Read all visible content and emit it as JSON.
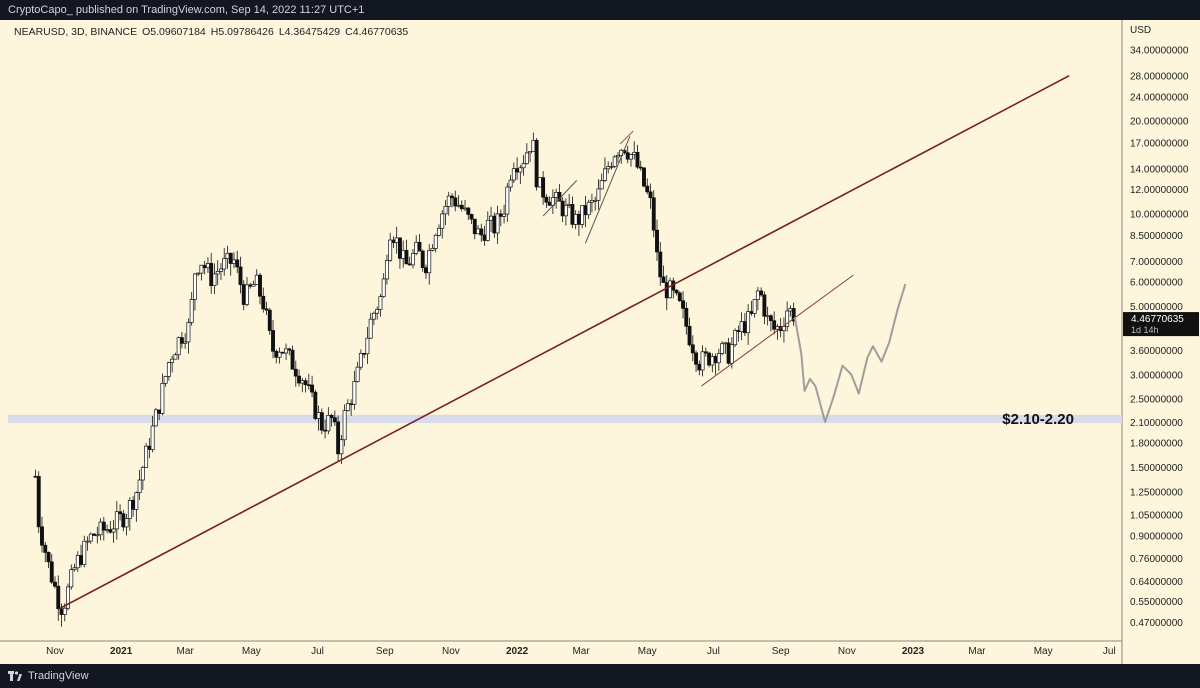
{
  "header": {
    "published_line": "CryptoCapo_ published on TradingView.com, Sep 14, 2022 11:27 UTC+1"
  },
  "footer": {
    "brand": "TradingView"
  },
  "chart_data": {
    "type": "candlestick",
    "symbol_line": "NEARUSD, 3D, BINANCE",
    "ohlc": {
      "open": "O5.09607184",
      "high": "H5.09786426",
      "low": "L4.36475429",
      "close": "C4.46770635"
    },
    "currency": "USD",
    "scale": "log",
    "ylim": [
      0.44,
      40
    ],
    "y_ticks": [
      "34.00000000",
      "28.00000000",
      "24.00000000",
      "20.00000000",
      "17.00000000",
      "14.00000000",
      "12.00000000",
      "10.00000000",
      "8.50000000",
      "7.00000000",
      "6.00000000",
      "5.00000000",
      "3.60000000",
      "3.00000000",
      "2.50000000",
      "2.10000000",
      "1.80000000",
      "1.50000000",
      "1.25000000",
      "1.05000000",
      "0.90000000",
      "0.76000000",
      "0.64000000",
      "0.55000000",
      "0.47000000"
    ],
    "x_ticks": [
      "Nov",
      "2021",
      "Mar",
      "May",
      "Jul",
      "Sep",
      "Nov",
      "2022",
      "Mar",
      "May",
      "Jul",
      "Sep",
      "Nov",
      "2023",
      "Mar",
      "May",
      "Jul"
    ],
    "last_price_label": "4.46770635",
    "countdown_label": "1d 14h",
    "support_zone": {
      "low": 2.1,
      "high": 2.2,
      "label": "$2.10-2.20",
      "color": "#d6dcea"
    },
    "price_path": [
      [
        "2020-10-14",
        1.4
      ],
      [
        "2020-10-17",
        1.0
      ],
      [
        "2020-10-26",
        0.72
      ],
      [
        "2020-11-04",
        0.56
      ],
      [
        "2020-11-08",
        0.52
      ],
      [
        "2020-11-20",
        0.72
      ],
      [
        "2020-12-05",
        0.9
      ],
      [
        "2020-12-20",
        0.95
      ],
      [
        "2021-01-05",
        1.05
      ],
      [
        "2021-01-15",
        1.25
      ],
      [
        "2021-01-25",
        1.7
      ],
      [
        "2021-02-05",
        2.4
      ],
      [
        "2021-02-15",
        3.4
      ],
      [
        "2021-02-25",
        4.0
      ],
      [
        "2021-03-05",
        4.3
      ],
      [
        "2021-03-10",
        6.5
      ],
      [
        "2021-03-15",
        7.1
      ],
      [
        "2021-03-25",
        6.2
      ],
      [
        "2021-04-05",
        6.8
      ],
      [
        "2021-04-15",
        7.0
      ],
      [
        "2021-04-25",
        5.3
      ],
      [
        "2021-05-05",
        6.0
      ],
      [
        "2021-05-13",
        5.0
      ],
      [
        "2021-05-20",
        3.6
      ],
      [
        "2021-05-28",
        3.7
      ],
      [
        "2021-06-07",
        3.3
      ],
      [
        "2021-06-18",
        2.9
      ],
      [
        "2021-06-25",
        2.5
      ],
      [
        "2021-07-05",
        2.05
      ],
      [
        "2021-07-15",
        2.15
      ],
      [
        "2021-07-20",
        1.7
      ],
      [
        "2021-07-25",
        2.15
      ],
      [
        "2021-08-05",
        2.8
      ],
      [
        "2021-08-20",
        4.6
      ],
      [
        "2021-08-30",
        5.5
      ],
      [
        "2021-09-05",
        9.0
      ],
      [
        "2021-09-10",
        8.5
      ],
      [
        "2021-09-20",
        6.7
      ],
      [
        "2021-10-01",
        7.6
      ],
      [
        "2021-10-08",
        6.7
      ],
      [
        "2021-10-18",
        9.0
      ],
      [
        "2021-10-25",
        10.3
      ],
      [
        "2021-11-01",
        11.4
      ],
      [
        "2021-11-10",
        10.5
      ],
      [
        "2021-11-20",
        9.2
      ],
      [
        "2021-11-28",
        8.4
      ],
      [
        "2021-12-05",
        9.2
      ],
      [
        "2021-12-12",
        9.0
      ],
      [
        "2021-12-20",
        10.5
      ],
      [
        "2021-12-28",
        15.0
      ],
      [
        "2022-01-05",
        14.6
      ],
      [
        "2022-01-15",
        17.5
      ],
      [
        "2022-01-20",
        12.3
      ],
      [
        "2022-01-25",
        11.8
      ],
      [
        "2022-02-05",
        11.0
      ],
      [
        "2022-02-15",
        10.2
      ],
      [
        "2022-02-25",
        9.4
      ],
      [
        "2022-03-05",
        10.2
      ],
      [
        "2022-03-15",
        11.0
      ],
      [
        "2022-03-25",
        14.0
      ],
      [
        "2022-04-02",
        16.2
      ],
      [
        "2022-04-10",
        16.6
      ],
      [
        "2022-04-20",
        14.8
      ],
      [
        "2022-04-28",
        12.3
      ],
      [
        "2022-05-05",
        10.5
      ],
      [
        "2022-05-10",
        7.2
      ],
      [
        "2022-05-15",
        5.8
      ],
      [
        "2022-05-22",
        5.6
      ],
      [
        "2022-06-01",
        4.9
      ],
      [
        "2022-06-10",
        3.9
      ],
      [
        "2022-06-18",
        3.3
      ],
      [
        "2022-06-26",
        3.4
      ],
      [
        "2022-07-05",
        3.6
      ],
      [
        "2022-07-15",
        3.5
      ],
      [
        "2022-07-25",
        4.2
      ],
      [
        "2022-08-05",
        4.6
      ],
      [
        "2022-08-12",
        5.7
      ],
      [
        "2022-08-20",
        4.5
      ],
      [
        "2022-08-26",
        4.2
      ],
      [
        "2022-09-01",
        4.3
      ],
      [
        "2022-09-08",
        5.0
      ],
      [
        "2022-09-14",
        4.47
      ]
    ],
    "trendlines": [
      {
        "from": [
          "2020-11-05",
          0.52
        ],
        "to": [
          "2023-05-25",
          28.0
        ],
        "color": "#7a1e1e",
        "width": 1.6
      },
      {
        "from": [
          "2022-06-20",
          2.75
        ],
        "to": [
          "2022-11-07",
          6.3
        ],
        "color": "#8b3a3a",
        "width": 1
      },
      {
        "from": [
          "2022-01-25",
          9.8
        ],
        "to": [
          "2022-02-25",
          12.8
        ],
        "color": "#555555",
        "width": 1
      },
      {
        "from": [
          "2022-03-05",
          8.0
        ],
        "to": [
          "2022-04-15",
          17.8
        ],
        "color": "#555555",
        "width": 1
      },
      {
        "from": [
          "2022-04-06",
          16.8
        ],
        "to": [
          "2022-04-18",
          18.5
        ],
        "color": "#b05050",
        "width": 1
      }
    ],
    "projection": {
      "color": "#9e9e9e",
      "points": [
        [
          "2022-09-14",
          4.6
        ],
        [
          "2022-09-20",
          3.5
        ],
        [
          "2022-09-23",
          2.65
        ],
        [
          "2022-09-28",
          2.9
        ],
        [
          "2022-10-03",
          2.75
        ],
        [
          "2022-10-12",
          2.1
        ],
        [
          "2022-10-20",
          2.55
        ],
        [
          "2022-10-28",
          3.2
        ],
        [
          "2022-11-05",
          3.0
        ],
        [
          "2022-11-12",
          2.6
        ],
        [
          "2022-11-20",
          3.4
        ],
        [
          "2022-11-25",
          3.7
        ],
        [
          "2022-12-03",
          3.3
        ],
        [
          "2022-12-10",
          3.8
        ],
        [
          "2022-12-18",
          4.9
        ],
        [
          "2022-12-25",
          5.9
        ]
      ]
    }
  }
}
